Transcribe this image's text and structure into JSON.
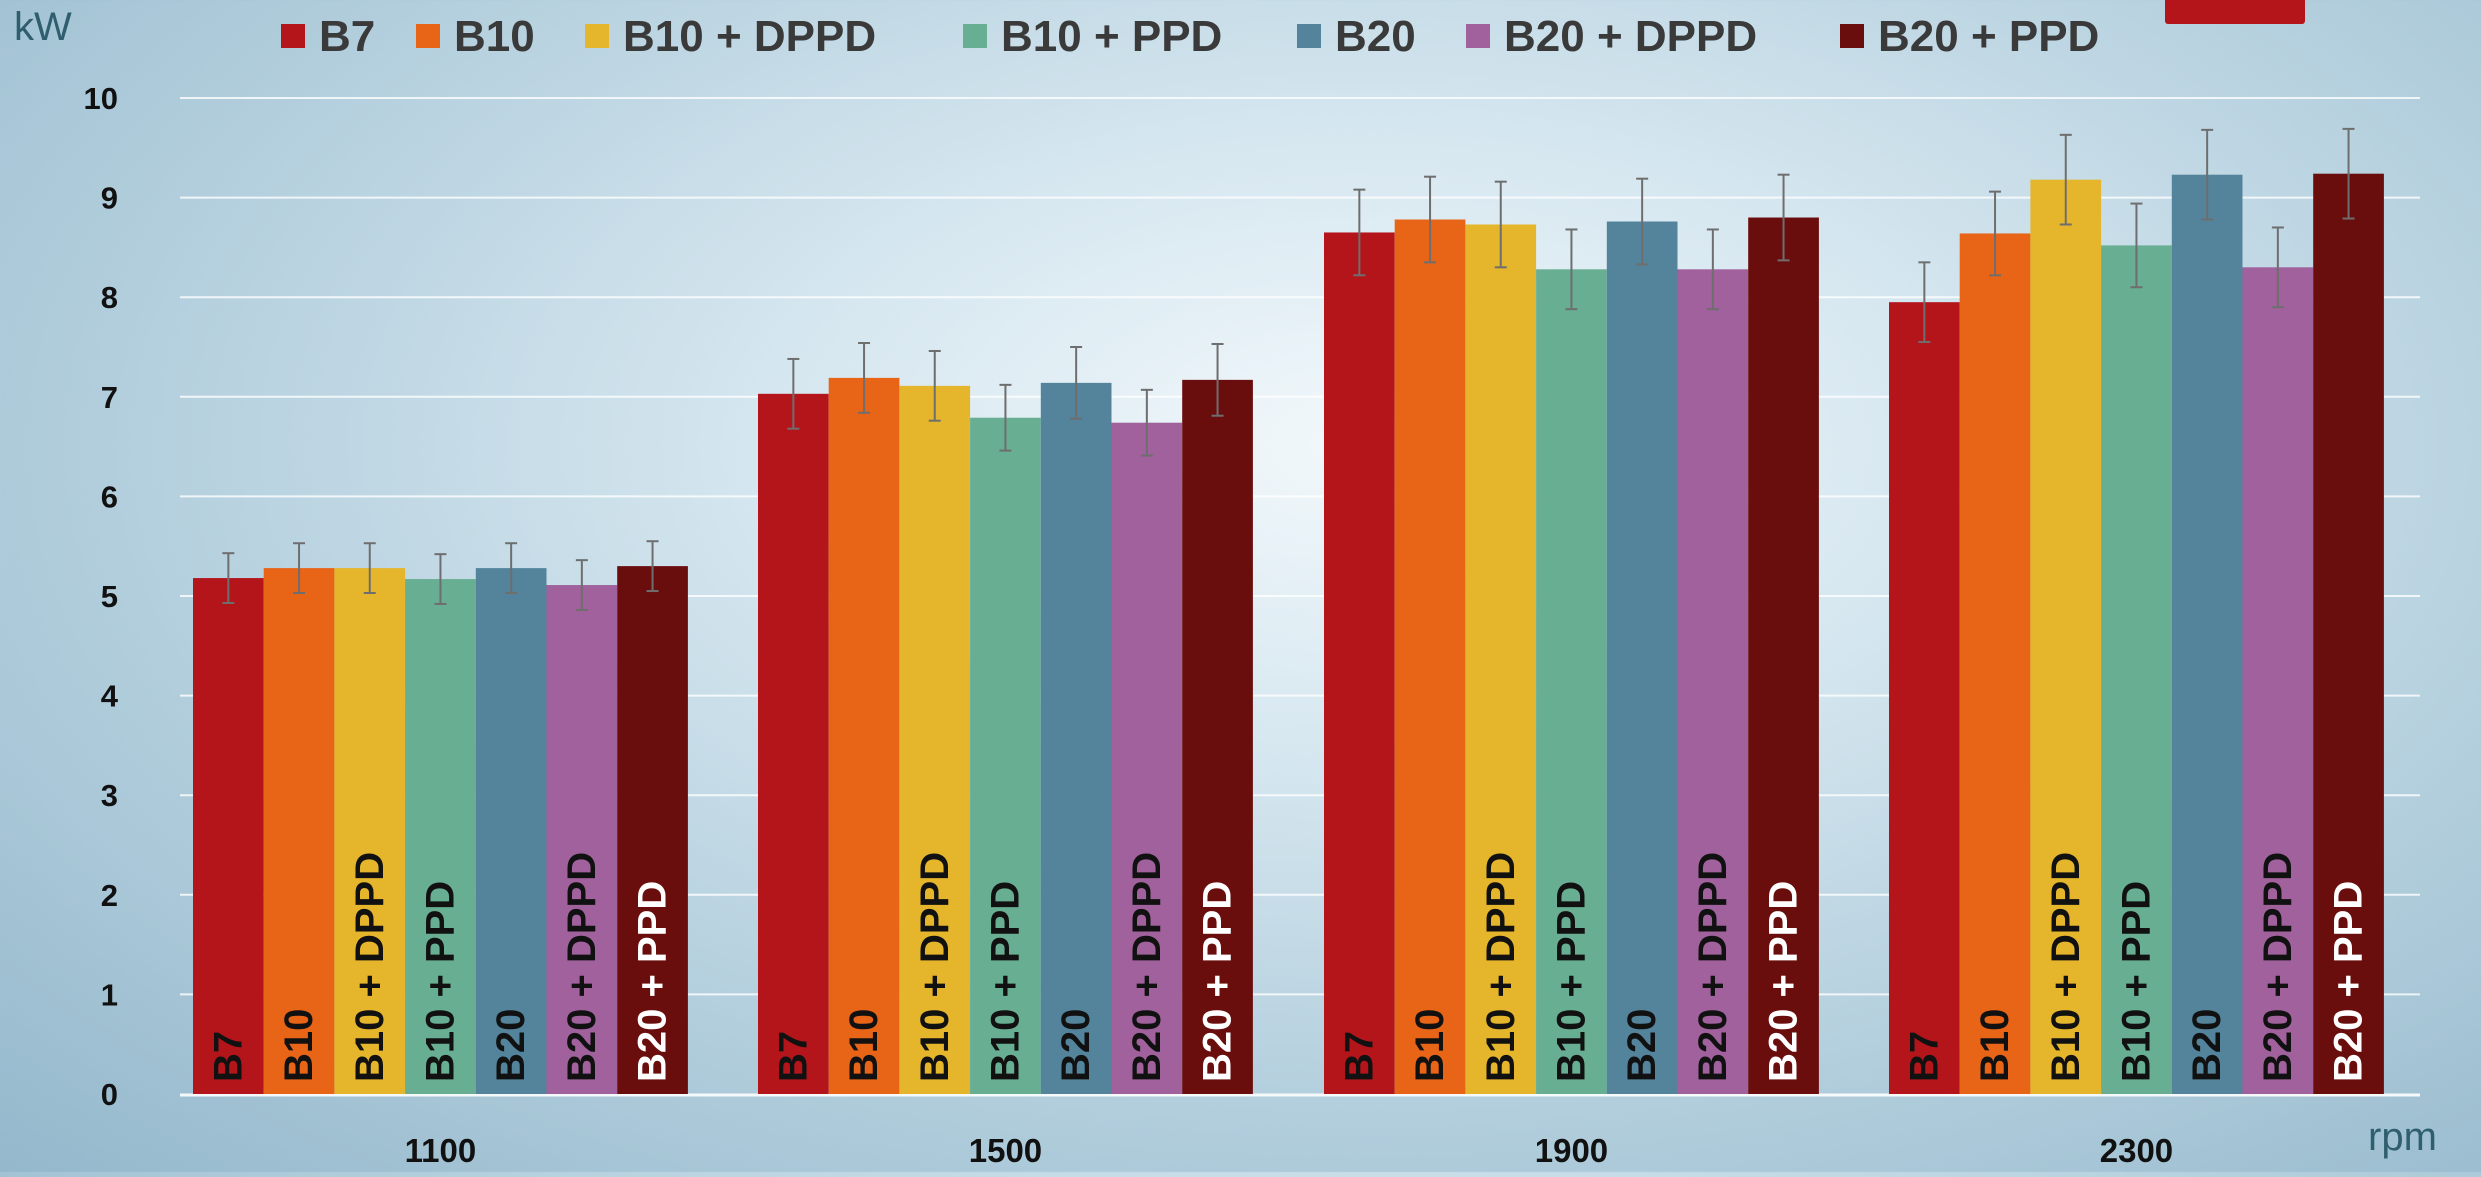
{
  "chart_data": {
    "type": "bar",
    "title": "",
    "ylabel": "kW",
    "xlabel": "rpm",
    "ylim": [
      0,
      10
    ],
    "yticks": [
      0,
      1,
      2,
      3,
      4,
      5,
      6,
      7,
      8,
      9,
      10
    ],
    "grid": true,
    "legend_position": "top",
    "categories": [
      "1100",
      "1500",
      "1900",
      "2300"
    ],
    "series": [
      {
        "name": "B7",
        "color": "#b3151b",
        "values": [
          5.18,
          7.03,
          8.65,
          7.95
        ],
        "errors": [
          0.25,
          0.35,
          0.43,
          0.4
        ]
      },
      {
        "name": "B10",
        "color": "#e86417",
        "values": [
          5.28,
          7.19,
          8.78,
          8.64
        ],
        "errors": [
          0.25,
          0.35,
          0.43,
          0.42
        ]
      },
      {
        "name": "B10 + DPPD",
        "color": "#e5b52b",
        "values": [
          5.28,
          7.11,
          8.73,
          9.18
        ],
        "errors": [
          0.25,
          0.35,
          0.43,
          0.45
        ]
      },
      {
        "name": "B10 + PPD",
        "color": "#68ae92",
        "values": [
          5.17,
          6.79,
          8.28,
          8.52
        ],
        "errors": [
          0.25,
          0.33,
          0.4,
          0.42
        ]
      },
      {
        "name": "B20",
        "color": "#53849b",
        "values": [
          5.28,
          7.14,
          8.76,
          9.23
        ],
        "errors": [
          0.25,
          0.36,
          0.43,
          0.45
        ]
      },
      {
        "name": "B20 + DPPD",
        "color": "#a0619c",
        "values": [
          5.11,
          6.74,
          8.28,
          8.3
        ],
        "errors": [
          0.25,
          0.33,
          0.4,
          0.4
        ]
      },
      {
        "name": "B20 + PPD",
        "color": "#6a0e0d",
        "values": [
          5.3,
          7.17,
          8.8,
          9.24
        ],
        "errors": [
          0.25,
          0.36,
          0.43,
          0.45
        ]
      }
    ]
  }
}
